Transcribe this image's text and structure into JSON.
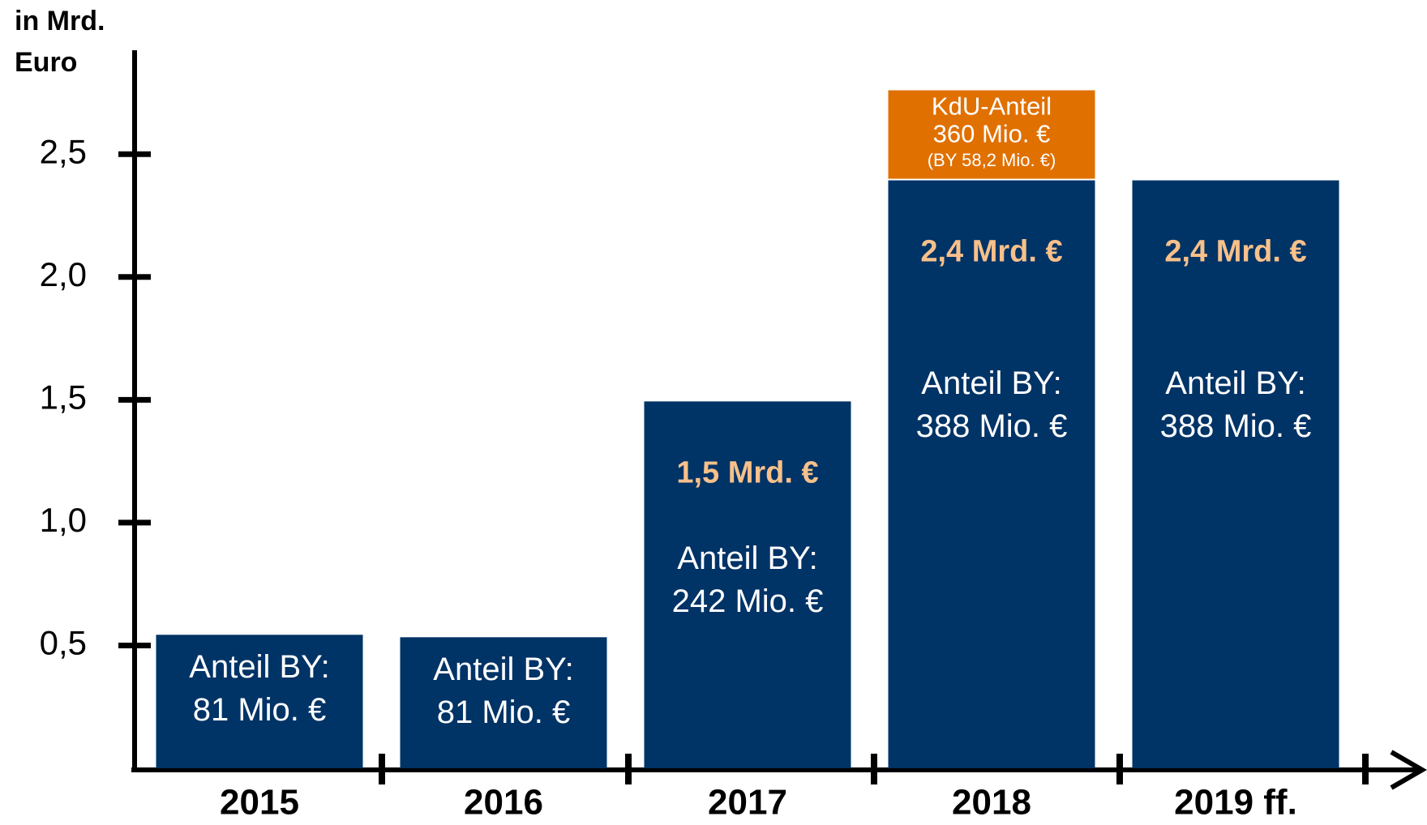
{
  "chart_data": {
    "type": "stacked_bar",
    "ylabel": [
      "in Mrd.",
      "Euro"
    ],
    "categories": [
      "2015",
      "2016",
      "2017",
      "2018",
      "2019 ff."
    ],
    "series": [
      {
        "color": "#003366",
        "values": [
          0.55,
          0.54,
          1.5,
          2.4,
          2.4
        ],
        "value_labels": [
          null,
          null,
          "1,5 Mrd. €",
          "2,4 Mrd. €",
          "2,4 Mrd. €"
        ],
        "notes": [
          [
            "Anteil BY:",
            "81 Mio. €"
          ],
          [
            "Anteil BY:",
            "81 Mio. €"
          ],
          [
            "Anteil BY:",
            "242 Mio. €"
          ],
          [
            "Anteil BY:",
            "388 Mio. €"
          ],
          [
            "Anteil BY:",
            "388 Mio. €"
          ]
        ]
      },
      {
        "color": "#e07000",
        "values": [
          null,
          null,
          null,
          0.36,
          null
        ],
        "value_labels": [
          null,
          null,
          null,
          "360 Mio. €",
          null
        ],
        "notes": [
          null,
          null,
          null,
          [
            "KdU-Anteil",
            "(BY 58,2 Mio. €)"
          ],
          null
        ]
      }
    ],
    "ylim": [
      0,
      2.9
    ],
    "yticks": [
      {
        "value": 0.5,
        "label": "0,5"
      },
      {
        "value": 1.0,
        "label": "1,0"
      },
      {
        "value": 1.5,
        "label": "1,5"
      },
      {
        "value": 2.0,
        "label": "2,0"
      },
      {
        "value": 2.5,
        "label": "2,5"
      }
    ]
  }
}
